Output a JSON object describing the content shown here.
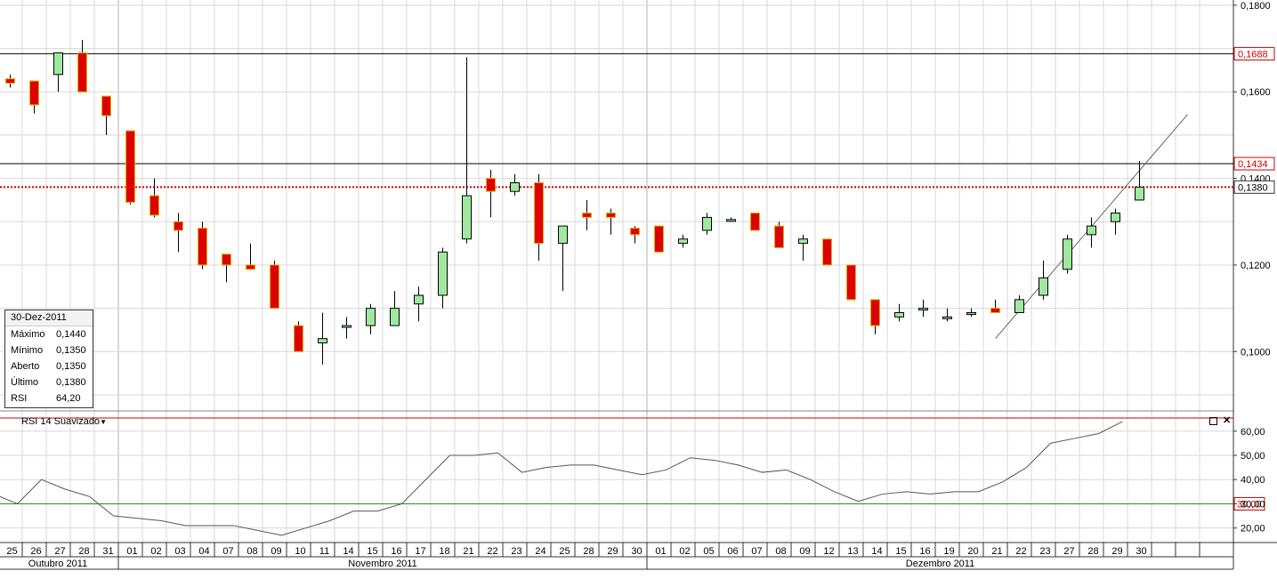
{
  "info_box": {
    "date": "30-Dez-2011",
    "rows": [
      {
        "label": "Máximo",
        "value": "0,1440"
      },
      {
        "label": "Mínimo",
        "value": "0,1350"
      },
      {
        "label": "Aberto",
        "value": "0,1350"
      },
      {
        "label": "Último",
        "value": "0,1380"
      },
      {
        "label": "RSI",
        "value": "64,20"
      }
    ]
  },
  "rsi_panel": {
    "label": "RSI 14 Suavizado",
    "dropdown_icon": "triangle-down-icon",
    "maximize_icon": "square-icon",
    "close_icon": "close-icon"
  },
  "chart_data": [
    {
      "type": "candlestick",
      "x_labels": [
        "25",
        "26",
        "27",
        "28",
        "31",
        "01",
        "02",
        "03",
        "04",
        "07",
        "08",
        "09",
        "10",
        "11",
        "14",
        "15",
        "16",
        "17",
        "18",
        "21",
        "22",
        "23",
        "24",
        "25",
        "28",
        "29",
        "30",
        "01",
        "02",
        "05",
        "06",
        "07",
        "08",
        "09",
        "12",
        "13",
        "14",
        "15",
        "16",
        "19",
        "20",
        "21",
        "22",
        "23",
        "27",
        "28",
        "29",
        "30"
      ],
      "month_labels": [
        "Outubro 2011",
        "Novembro 2011",
        "Dezembro 2011"
      ],
      "y_ticks": [
        "0,1000",
        "0,1200",
        "0,1400",
        "0,1600",
        "0,1800"
      ],
      "ylim": [
        0.0865,
        0.1808
      ],
      "candles": [
        {
          "o": 0.163,
          "h": 0.164,
          "l": 0.161,
          "c": 0.162
        },
        {
          "o": 0.1625,
          "h": 0.1625,
          "l": 0.155,
          "c": 0.157
        },
        {
          "o": 0.164,
          "h": 0.169,
          "l": 0.16,
          "c": 0.169
        },
        {
          "o": 0.169,
          "h": 0.172,
          "l": 0.16,
          "c": 0.16
        },
        {
          "o": 0.159,
          "h": 0.159,
          "l": 0.15,
          "c": 0.1545
        },
        {
          "o": 0.151,
          "h": 0.151,
          "l": 0.134,
          "c": 0.1345
        },
        {
          "o": 0.136,
          "h": 0.14,
          "l": 0.131,
          "c": 0.1315
        },
        {
          "o": 0.13,
          "h": 0.132,
          "l": 0.123,
          "c": 0.128
        },
        {
          "o": 0.1285,
          "h": 0.13,
          "l": 0.119,
          "c": 0.12
        },
        {
          "o": 0.1225,
          "h": 0.1225,
          "l": 0.116,
          "c": 0.12
        },
        {
          "o": 0.12,
          "h": 0.125,
          "l": 0.119,
          "c": 0.119
        },
        {
          "o": 0.12,
          "h": 0.121,
          "l": 0.11,
          "c": 0.11
        },
        {
          "o": 0.106,
          "h": 0.107,
          "l": 0.1,
          "c": 0.1
        },
        {
          "o": 0.102,
          "h": 0.109,
          "l": 0.097,
          "c": 0.103
        },
        {
          "o": 0.106,
          "h": 0.108,
          "l": 0.103,
          "c": 0.106
        },
        {
          "o": 0.106,
          "h": 0.111,
          "l": 0.104,
          "c": 0.11
        },
        {
          "o": 0.106,
          "h": 0.114,
          "l": 0.106,
          "c": 0.11
        },
        {
          "o": 0.111,
          "h": 0.115,
          "l": 0.107,
          "c": 0.113
        },
        {
          "o": 0.113,
          "h": 0.124,
          "l": 0.11,
          "c": 0.123
        },
        {
          "o": 0.126,
          "h": 0.168,
          "l": 0.125,
          "c": 0.136
        },
        {
          "o": 0.14,
          "h": 0.142,
          "l": 0.131,
          "c": 0.137
        },
        {
          "o": 0.137,
          "h": 0.141,
          "l": 0.136,
          "c": 0.139
        },
        {
          "o": 0.139,
          "h": 0.141,
          "l": 0.121,
          "c": 0.125
        },
        {
          "o": 0.125,
          "h": 0.129,
          "l": 0.114,
          "c": 0.129
        },
        {
          "o": 0.132,
          "h": 0.135,
          "l": 0.128,
          "c": 0.131
        },
        {
          "o": 0.132,
          "h": 0.133,
          "l": 0.127,
          "c": 0.131
        },
        {
          "o": 0.1285,
          "h": 0.129,
          "l": 0.125,
          "c": 0.127
        },
        {
          "o": 0.129,
          "h": 0.129,
          "l": 0.123,
          "c": 0.123
        },
        {
          "o": 0.125,
          "h": 0.127,
          "l": 0.124,
          "c": 0.126
        },
        {
          "o": 0.128,
          "h": 0.132,
          "l": 0.127,
          "c": 0.131
        },
        {
          "o": 0.1305,
          "h": 0.131,
          "l": 0.13,
          "c": 0.1305
        },
        {
          "o": 0.132,
          "h": 0.132,
          "l": 0.128,
          "c": 0.128
        },
        {
          "o": 0.129,
          "h": 0.13,
          "l": 0.124,
          "c": 0.124
        },
        {
          "o": 0.125,
          "h": 0.127,
          "l": 0.121,
          "c": 0.126
        },
        {
          "o": 0.126,
          "h": 0.126,
          "l": 0.12,
          "c": 0.12
        },
        {
          "o": 0.12,
          "h": 0.12,
          "l": 0.112,
          "c": 0.112
        },
        {
          "o": 0.112,
          "h": 0.112,
          "l": 0.104,
          "c": 0.106
        },
        {
          "o": 0.108,
          "h": 0.111,
          "l": 0.107,
          "c": 0.109
        },
        {
          "o": 0.11,
          "h": 0.112,
          "l": 0.108,
          "c": 0.11
        },
        {
          "o": 0.108,
          "h": 0.11,
          "l": 0.107,
          "c": 0.108
        },
        {
          "o": 0.109,
          "h": 0.11,
          "l": 0.108,
          "c": 0.109
        },
        {
          "o": 0.11,
          "h": 0.112,
          "l": 0.109,
          "c": 0.109
        },
        {
          "o": 0.109,
          "h": 0.113,
          "l": 0.109,
          "c": 0.112
        },
        {
          "o": 0.113,
          "h": 0.121,
          "l": 0.112,
          "c": 0.117
        },
        {
          "o": 0.119,
          "h": 0.127,
          "l": 0.118,
          "c": 0.126
        },
        {
          "o": 0.127,
          "h": 0.131,
          "l": 0.124,
          "c": 0.129
        },
        {
          "o": 0.13,
          "h": 0.133,
          "l": 0.127,
          "c": 0.132
        },
        {
          "o": 0.135,
          "h": 0.144,
          "l": 0.135,
          "c": 0.138
        }
      ],
      "horizontal_lines": [
        {
          "value": 0.1688,
          "label": "0,1688",
          "style": "solid",
          "color": "#000000"
        },
        {
          "value": 0.1434,
          "label": "0,1434",
          "style": "solid",
          "color": "#000000"
        },
        {
          "value": 0.138,
          "label": "0,1380",
          "style": "dotted",
          "color": "#cc0000"
        }
      ],
      "trendline": {
        "from": {
          "x": "21",
          "y": 0.103
        },
        "to": {
          "x": "30",
          "y": 0.1445
        }
      },
      "colors": {
        "up": "#a0e8a0",
        "down": "#dd0000",
        "outline": "#e0b000",
        "grid": "#d8d8d8"
      }
    },
    {
      "type": "line",
      "series": [
        {
          "values": [
            33,
            30,
            40,
            36,
            33,
            25,
            24,
            23,
            21,
            21,
            21,
            19,
            17,
            20,
            23,
            27,
            27,
            30,
            40,
            50,
            50,
            51,
            43,
            45,
            46,
            46,
            44,
            42,
            44,
            49,
            48,
            46,
            43,
            44,
            40,
            35,
            31,
            34,
            35,
            34,
            35,
            35,
            39,
            45,
            55,
            57,
            59,
            64
          ]
        }
      ],
      "y_ticks": [
        "20,00",
        "30,00",
        "40,00",
        "50,00",
        "60,00"
      ],
      "ylim": [
        14,
        68
      ],
      "reference_lines": [
        {
          "value": 30,
          "label": "30,00",
          "color": "#2e8b2e"
        },
        {
          "value": 70,
          "color": "#cc0000"
        }
      ]
    }
  ]
}
